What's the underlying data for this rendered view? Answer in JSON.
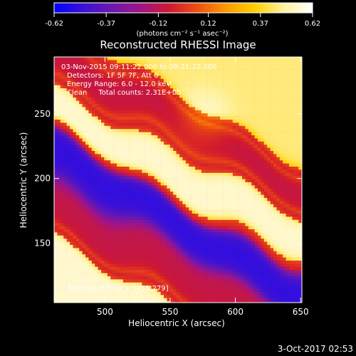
{
  "chart_data": {
    "type": "heatmap",
    "title": "Reconstructed RHESSI Image",
    "xlabel": "Heliocentric X (arcsec)",
    "ylabel": "Heliocentric Y (arcsec)",
    "xlim": [
      461,
      651
    ],
    "ylim": [
      104,
      294
    ],
    "xticks": [
      500,
      550,
      600,
      650
    ],
    "yticks": [
      150,
      200,
      250
    ],
    "colorbar": {
      "ticks": [
        "-0.62",
        "-0.37",
        "-0.12",
        "0.12",
        "0.37",
        "0.62"
      ],
      "min": -0.62,
      "max": 0.62,
      "unit_label": "(photons cm⁻² s⁻¹ asec⁻²)",
      "colors": [
        "#0000ff",
        "#3a10d8",
        "#6a18b0",
        "#a0148a",
        "#d01830",
        "#f05010",
        "#ff9a00",
        "#ffd000",
        "#fff2a0",
        "#ffffff"
      ]
    },
    "annotations": [
      "03-Nov-2015 09:11:22.000 to 09:21:22.000",
      "Detectors: 1F 5F 7F, Att 0",
      "Energy Range: 6.0 - 12.0 keV",
      "Clean     Total counts: 2.31E+05"
    ],
    "peak_label": "Position of Peak = [458,279]",
    "bands": [
      {
        "intercept": 332,
        "value": 0.45
      },
      {
        "intercept": 295,
        "value": -0.1
      },
      {
        "intercept": 258,
        "value": 0.55
      },
      {
        "intercept": 215,
        "value": -0.5
      },
      {
        "intercept": 180,
        "value": -0.1
      },
      {
        "intercept": 139,
        "value": 0.55
      }
    ]
  },
  "footer": {
    "date": "3-Oct-2017 02:53"
  }
}
